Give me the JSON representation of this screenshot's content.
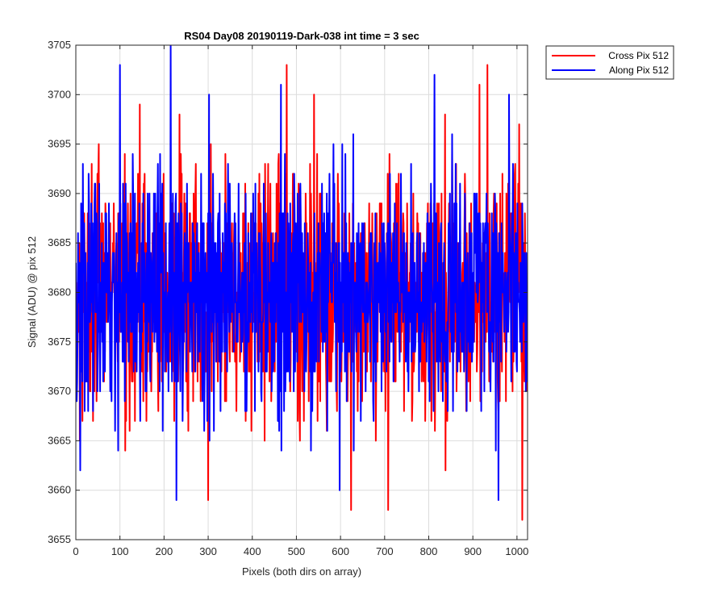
{
  "chart_data": {
    "type": "line",
    "title": "RS04 Day08 20190119-Dark-038 int time = 3 sec",
    "xlabel": "Pixels (both dirs on array)",
    "ylabel": "Signal (ADU) @ pix 512",
    "xlim": [
      0,
      1024
    ],
    "ylim": [
      3655,
      3705
    ],
    "xticks": [
      0,
      100,
      200,
      300,
      400,
      500,
      600,
      700,
      800,
      900,
      1000
    ],
    "yticks": [
      3655,
      3660,
      3665,
      3670,
      3675,
      3680,
      3685,
      3690,
      3695,
      3700,
      3705
    ],
    "grid": true,
    "legend_position": "outside top-right",
    "series": [
      {
        "name": "Cross Pix 512",
        "color": "#ff0000",
        "x_start": 0,
        "x_step": 1,
        "count": 1024,
        "mean": 3680,
        "std": 6.2,
        "min": 3657,
        "max": 3703,
        "peaks": [
          [
            145,
            3699
          ],
          [
            235,
            3698
          ],
          [
            300,
            3659
          ],
          [
            478,
            3703
          ],
          [
            540,
            3700
          ],
          [
            624,
            3658
          ],
          [
            708,
            3658
          ],
          [
            915,
            3701
          ],
          [
            933,
            3703
          ],
          [
            1005,
            3697
          ],
          [
            1012,
            3657
          ]
        ]
      },
      {
        "name": "Along Pix 512",
        "color": "#0000ff",
        "x_start": 0,
        "x_step": 1,
        "count": 1024,
        "mean": 3680,
        "std": 6.0,
        "min": 3659,
        "max": 3705,
        "peaks": [
          [
            10,
            3662
          ],
          [
            100,
            3703
          ],
          [
            215,
            3705
          ],
          [
            228,
            3659
          ],
          [
            302,
            3700
          ],
          [
            465,
            3701
          ],
          [
            598,
            3660
          ],
          [
            813,
            3702
          ],
          [
            958,
            3659
          ],
          [
            982,
            3700
          ]
        ]
      }
    ]
  }
}
